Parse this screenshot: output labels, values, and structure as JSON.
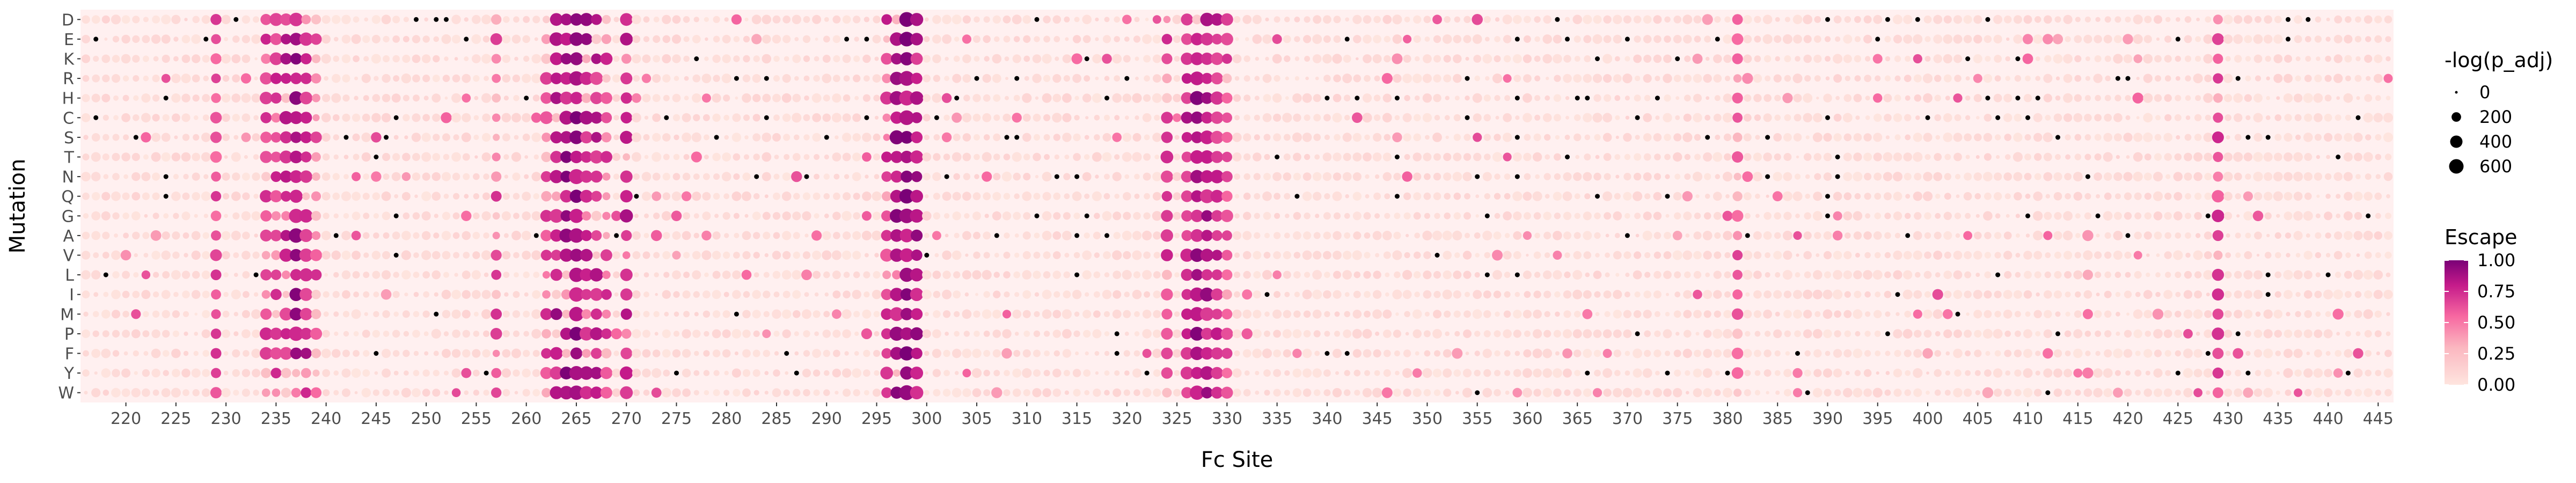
{
  "chart_data": {
    "type": "scatter",
    "title": "",
    "xlabel": "Fc Site",
    "ylabel": "Mutation",
    "x_range": [
      216,
      446
    ],
    "x_ticks": [
      220,
      225,
      230,
      235,
      240,
      245,
      250,
      255,
      260,
      265,
      270,
      275,
      280,
      285,
      290,
      295,
      300,
      305,
      310,
      315,
      320,
      325,
      330,
      335,
      340,
      345,
      350,
      355,
      360,
      365,
      370,
      375,
      380,
      385,
      390,
      395,
      400,
      405,
      410,
      415,
      420,
      425,
      430,
      435,
      440,
      445
    ],
    "mutations": [
      "D",
      "E",
      "K",
      "R",
      "H",
      "C",
      "S",
      "T",
      "N",
      "Q",
      "G",
      "A",
      "V",
      "L",
      "I",
      "M",
      "P",
      "F",
      "Y",
      "W"
    ],
    "size_legend": {
      "title": "-log(p_adj)",
      "breaks": [
        "0",
        "200",
        "400",
        "600"
      ],
      "values": [
        0,
        200,
        400,
        600
      ]
    },
    "color_legend": {
      "title": "Escape",
      "breaks": [
        "0.00",
        "0.25",
        "0.50",
        "0.75",
        "1.00"
      ],
      "values": [
        0,
        0.25,
        0.5,
        0.75,
        1.0
      ],
      "low": "#fde0dd",
      "high": "#7a0177"
    },
    "grid": false,
    "panel_background": "#fff0f0",
    "legend_position": "right",
    "high_escape_sites": [
      {
        "site": 229,
        "escape": 0.7,
        "rows": "all",
        "neglogp": 350
      },
      {
        "site": 234,
        "escape": 0.75,
        "rows": "most",
        "neglogp": 400
      },
      {
        "site": 235,
        "escape": 0.8,
        "rows": "most",
        "neglogp": 420
      },
      {
        "site": 236,
        "escape": 0.85,
        "rows": "most",
        "neglogp": 450
      },
      {
        "site": 237,
        "escape": 0.95,
        "rows": "all",
        "neglogp": 550
      },
      {
        "site": 238,
        "escape": 0.85,
        "rows": "most",
        "neglogp": 450
      },
      {
        "site": 239,
        "escape": 0.7,
        "rows": "some",
        "neglogp": 350
      },
      {
        "site": 257,
        "escape": 0.7,
        "rows": "some",
        "neglogp": 350
      },
      {
        "site": 262,
        "escape": 0.75,
        "rows": "most",
        "neglogp": 400
      },
      {
        "site": 263,
        "escape": 0.9,
        "rows": "most",
        "neglogp": 480
      },
      {
        "site": 264,
        "escape": 0.95,
        "rows": "most",
        "neglogp": 520
      },
      {
        "site": 265,
        "escape": 1.0,
        "rows": "all",
        "neglogp": 600
      },
      {
        "site": 266,
        "escape": 0.9,
        "rows": "most",
        "neglogp": 480
      },
      {
        "site": 267,
        "escape": 0.85,
        "rows": "most",
        "neglogp": 450
      },
      {
        "site": 268,
        "escape": 0.75,
        "rows": "some",
        "neglogp": 400
      },
      {
        "site": 270,
        "escape": 0.85,
        "rows": "most",
        "neglogp": 450
      },
      {
        "site": 296,
        "escape": 0.8,
        "rows": "most",
        "neglogp": 420
      },
      {
        "site": 297,
        "escape": 0.95,
        "rows": "all",
        "neglogp": 550
      },
      {
        "site": 298,
        "escape": 1.0,
        "rows": "all",
        "neglogp": 600
      },
      {
        "site": 299,
        "escape": 0.9,
        "rows": "all",
        "neglogp": 500
      },
      {
        "site": 324,
        "escape": 0.75,
        "rows": "most",
        "neglogp": 400
      },
      {
        "site": 326,
        "escape": 0.85,
        "rows": "all",
        "neglogp": 450
      },
      {
        "site": 327,
        "escape": 0.95,
        "rows": "all",
        "neglogp": 550
      },
      {
        "site": 328,
        "escape": 0.9,
        "rows": "all",
        "neglogp": 500
      },
      {
        "site": 329,
        "escape": 0.85,
        "rows": "all",
        "neglogp": 450
      },
      {
        "site": 330,
        "escape": 0.7,
        "rows": "most",
        "neglogp": 380
      },
      {
        "site": 381,
        "escape": 0.65,
        "rows": "most",
        "neglogp": 330
      },
      {
        "site": 429,
        "escape": 0.75,
        "rows": "most",
        "neglogp": 400
      }
    ]
  }
}
